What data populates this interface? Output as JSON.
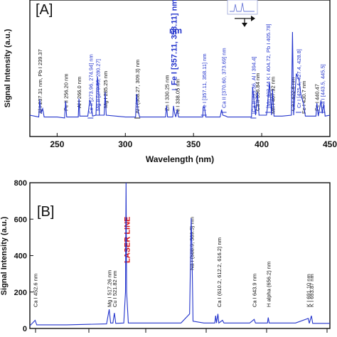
{
  "chart_data": [
    {
      "panel": "[A]",
      "type": "line",
      "xlabel": "Wavelength (nm)",
      "ylabel": "Signal Intensity (a.u.)",
      "xlim": [
        230,
        450
      ],
      "x_ticks": [
        250,
        300,
        350,
        400,
        450
      ],
      "y_ticks_shown": false,
      "grid": false,
      "colors": {
        "spectrum": "#2233cc",
        "black_label": "#111111",
        "blue_label": "#2233cc"
      },
      "series": [
        {
          "x": [
            230,
            236.5,
            237.31,
            238.2,
            239.37,
            240.5,
            250,
            255.5,
            256.2,
            257,
            265.5,
            266,
            266.6,
            272.5,
            273.96,
            274.94,
            276,
            278.5,
            279.55,
            280.27,
            281,
            284.5,
            285.25,
            286,
            300,
            307.5,
            308.27,
            309.3,
            310.5,
            320,
            329.5,
            330.25,
            331,
            334.8,
            335.3,
            336.2,
            337,
            338.05,
            339,
            356.8,
            357.11,
            358.11,
            359,
            369.5,
            370.6,
            371.5,
            373.69,
            375,
            380,
            392.5,
            393.36,
            394.4,
            395.5,
            396.84,
            398,
            403.5,
            404.4,
            404.72,
            405.78,
            407.2,
            407.92,
            409,
            415,
            421.8,
            422.6,
            423.4,
            425.4,
            427.4,
            428.8,
            430.7,
            432,
            439.8,
            440.47,
            441.5,
            443.5,
            444.4,
            445.5,
            446.5,
            450
          ],
          "y": [
            0.1,
            0.08,
            0.27,
            0.12,
            0.17,
            0.08,
            0.08,
            0.07,
            0.25,
            0.08,
            0.08,
            0.28,
            0.09,
            0.09,
            0.26,
            0.22,
            0.09,
            0.1,
            0.52,
            0.42,
            0.1,
            0.1,
            0.35,
            0.1,
            0.08,
            0.08,
            0.33,
            0.15,
            0.08,
            0.08,
            0.08,
            0.2,
            0.08,
            0.08,
            0.2,
            0.12,
            0.08,
            0.16,
            0.08,
            0.08,
            0.19,
            0.18,
            0.08,
            0.08,
            0.16,
            0.1,
            0.09,
            0.08,
            0.08,
            0.08,
            0.4,
            0.25,
            0.1,
            0.35,
            0.1,
            0.1,
            0.2,
            0.3,
            0.45,
            0.1,
            0.38,
            0.09,
            0.09,
            0.1,
            1.0,
            0.1,
            0.55,
            0.48,
            0.32,
            0.22,
            0.09,
            0.09,
            0.23,
            0.09,
            0.26,
            0.12,
            0.22,
            0.09,
            0.1
          ]
        }
      ],
      "annotations": [
        {
          "x": 237.31,
          "text": "Al I 237.31 nm, Pb I 239.37",
          "color": "black",
          "bar": false
        },
        {
          "x": 256.2,
          "text": "Fe II 256.20 nm",
          "color": "black",
          "bar": false
        },
        {
          "x": 266.0,
          "text": "Al I 266.0 nm",
          "color": "black",
          "bar": false
        },
        {
          "x": 274.45,
          "text": "Fe II [273.96, 274.94] nm",
          "color": "blue",
          "bar": true
        },
        {
          "x": 279.91,
          "text": "Mg II [279.55, 280.27]",
          "color": "blue",
          "bar": true
        },
        {
          "x": 285.25,
          "text": "Mg I 285.25 nm",
          "color": "black",
          "bar": false
        },
        {
          "x": 308.8,
          "text": "Al I (308.27, 309.3) nm",
          "color": "black",
          "bar": true
        },
        {
          "x": 330.25,
          "text": "Zn I 330.25 nm",
          "color": "black",
          "bar": false
        },
        {
          "x": 336.2,
          "text": "Fe I [357.11, 358.11] nm",
          "color": "blue",
          "bar": true,
          "large": true
        },
        {
          "x": 338.05,
          "text": "Ni I 338.05 nm",
          "color": "black",
          "bar": false
        },
        {
          "x": 357.6,
          "text": "Fe I [357.11, 358.11] nm",
          "color": "blue",
          "bar": true
        },
        {
          "x": 372.1,
          "text": "Ca II [370.60, 373.69] nm",
          "color": "blue",
          "bar": true
        },
        {
          "x": 393.9,
          "text": "[Ca II 393.36, Al I 394.4]",
          "color": "blue",
          "bar": true
        },
        {
          "x": 396.84,
          "text": "Ca II 396.84 nm",
          "color": "black",
          "bar": false
        },
        {
          "x": 404.7,
          "text": "[Mn 403.44 K I 404.72, Pb I 405.78]",
          "color": "blue",
          "bar": true
        },
        {
          "x": 407.92,
          "text": "Mn I 407.92 nm",
          "color": "black",
          "bar": false
        },
        {
          "x": 422.6,
          "text": "Ca I 422.6 nm",
          "color": "black",
          "bar": false
        },
        {
          "x": 427.1,
          "text": "Cr I [425.4, 427.4, 428.8]",
          "color": "blue",
          "bar": true
        },
        {
          "x": 430.7,
          "text": "Fe I 430.7 nm",
          "color": "black",
          "bar": false
        },
        {
          "x": 440.47,
          "text": "Fe I 440.47",
          "color": "black",
          "bar": false
        },
        {
          "x": 444.5,
          "text": "Ca I [443.5, 445.5]",
          "color": "blue",
          "bar": true
        }
      ],
      "big_label": "nm"
    },
    {
      "panel": "[B]",
      "type": "line",
      "xlabel": "",
      "ylabel": "Signal Intensity (a.u.)",
      "xlim": [
        448,
        710
      ],
      "ylim": [
        0,
        800
      ],
      "y_ticks": [
        0,
        200,
        400,
        600,
        800
      ],
      "grid": false,
      "colors": {
        "spectrum": "#2233cc",
        "laser_label": "#dd1111"
      },
      "series": [
        {
          "x": [
            448,
            452.6,
            454,
            480,
            515,
            517.26,
            518.5,
            520.5,
            521.82,
            523,
            530,
            531.5,
            532,
            532.5,
            534,
            580,
            587.5,
            588.9,
            589.5,
            590.5,
            600,
            609.5,
            610.2,
            611,
            612.2,
            613,
            616.2,
            617.5,
            640,
            643.9,
            645,
            655.5,
            656.2,
            657,
            680,
            691.1,
            692,
            693.87,
            695,
            710
          ],
          "y": [
            15,
            45,
            20,
            20,
            25,
            105,
            30,
            30,
            85,
            28,
            30,
            200,
            800,
            200,
            30,
            30,
            80,
            605,
            450,
            40,
            30,
            30,
            70,
            30,
            80,
            30,
            45,
            30,
            30,
            50,
            30,
            30,
            60,
            30,
            30,
            55,
            28,
            70,
            28,
            28
          ]
        }
      ],
      "annotations": [
        {
          "x": 452.6,
          "text": "Ca I 452.6 nm",
          "color": "black"
        },
        {
          "x": 517.26,
          "text": "Mg I 517.26 nm",
          "color": "black"
        },
        {
          "x": 521.82,
          "text": "Cu I 521.82 nm",
          "color": "black"
        },
        {
          "x": 532.0,
          "text": "LASER LINE",
          "color": "red"
        },
        {
          "x": 589.2,
          "text": "Na I (588.9, 589.5) nm",
          "color": "black"
        },
        {
          "x": 613.2,
          "text": "Ca I (610.2, 612.2, 616.2) nm",
          "color": "black"
        },
        {
          "x": 643.9,
          "text": "Ca I 643.9 nm",
          "color": "black"
        },
        {
          "x": 656.2,
          "text": "H alpha (656.2) nm",
          "color": "black"
        },
        {
          "x": 691.1,
          "text": "K I 691.10 nm",
          "color": "black"
        },
        {
          "x": 693.87,
          "text": "K I 693.87 nm",
          "color": "black"
        }
      ]
    }
  ],
  "inset_icon": "spectral-line-pair-arrow-icon"
}
